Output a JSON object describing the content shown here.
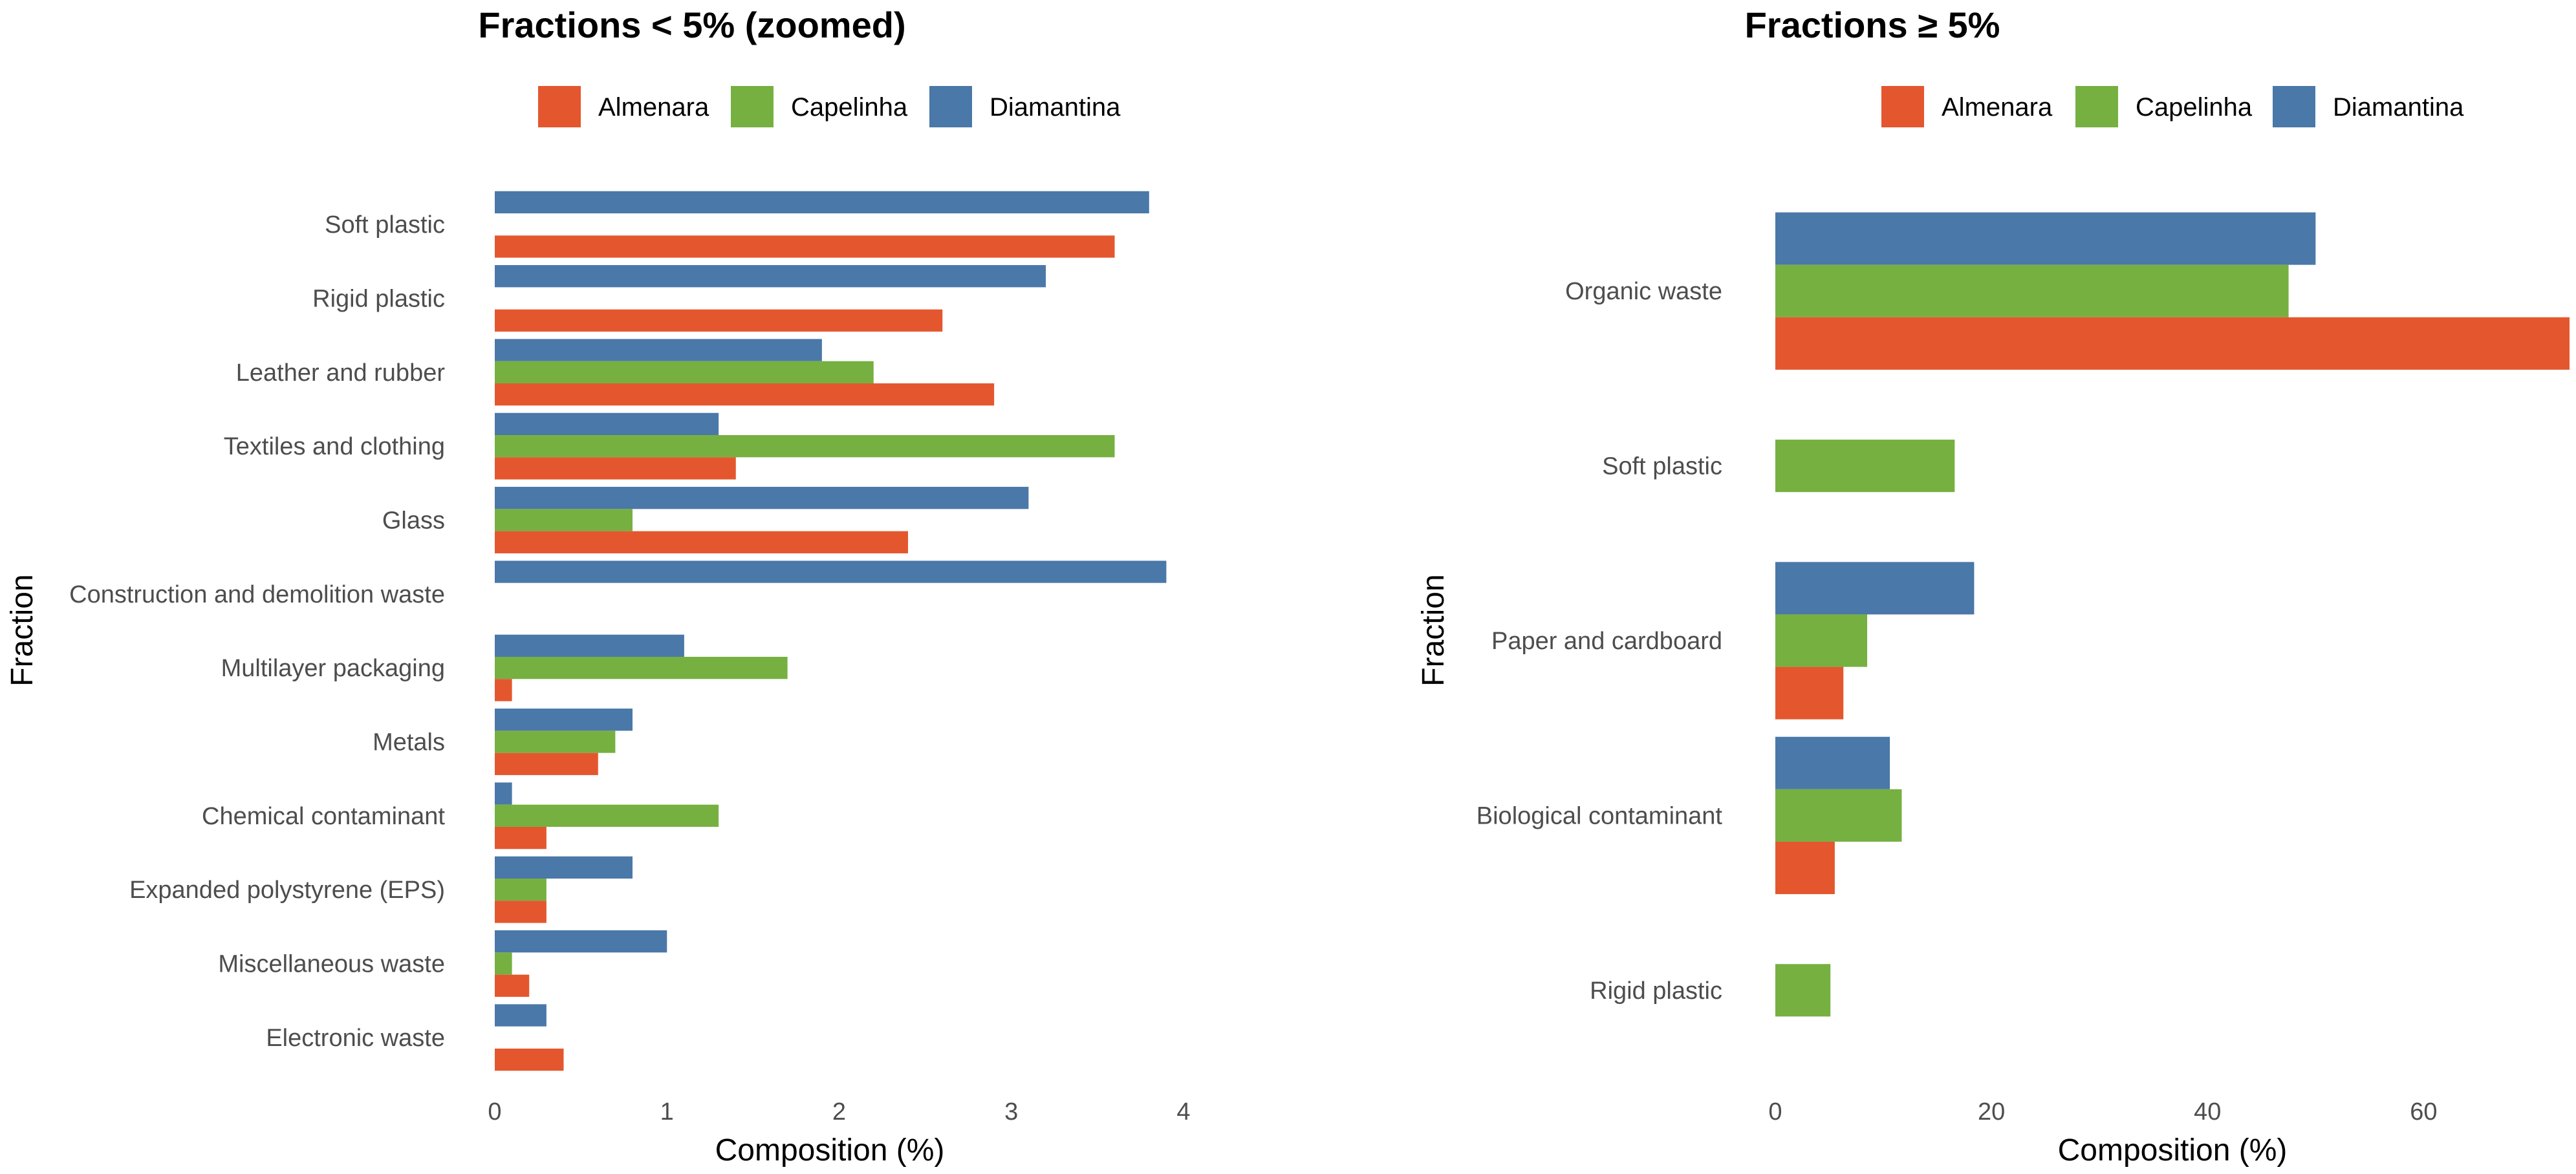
{
  "chart_data": [
    {
      "type": "bar",
      "orientation": "horizontal",
      "title": "Fractions < 5% (zoomed)",
      "xlabel": "Composition (%)",
      "ylabel": "Fraction",
      "xlim": [
        0,
        4
      ],
      "xticks": [
        "0",
        "1",
        "2",
        "3",
        "4"
      ],
      "legend_position": "top",
      "categories": [
        "Soft plastic",
        "Rigid plastic",
        "Leather and rubber",
        "Textiles and clothing",
        "Glass",
        "Construction and demolition waste",
        "Multilayer packaging",
        "Metals",
        "Chemical contaminant",
        "Expanded polystyrene (EPS)",
        "Miscellaneous waste",
        "Electronic waste"
      ],
      "series": [
        {
          "name": "Almenara",
          "color": "#E4572E",
          "values": [
            3.6,
            2.6,
            2.9,
            1.4,
            2.4,
            null,
            0.1,
            0.6,
            0.3,
            0.3,
            0.2,
            0.4
          ]
        },
        {
          "name": "Capelinha",
          "color": "#76B041",
          "values": [
            null,
            null,
            2.2,
            3.6,
            0.8,
            null,
            1.7,
            0.7,
            1.3,
            0.3,
            0.1,
            null
          ]
        },
        {
          "name": "Diamantina",
          "color": "#4A78A8",
          "values": [
            3.8,
            3.2,
            1.9,
            1.3,
            3.1,
            3.9,
            1.1,
            0.8,
            0.1,
            0.8,
            1.0,
            0.3
          ]
        }
      ]
    },
    {
      "type": "bar",
      "orientation": "horizontal",
      "title": "Fractions ≥ 5%",
      "xlabel": "Composition (%)",
      "ylabel": "Fraction",
      "xlim": [
        0,
        73.5
      ],
      "xticks": [
        "0",
        "20",
        "40",
        "60"
      ],
      "legend_position": "top",
      "categories": [
        "Organic waste",
        "Soft plastic",
        "Paper and cardboard",
        "Biological contaminant",
        "Rigid plastic"
      ],
      "series": [
        {
          "name": "Almenara",
          "color": "#E4572E",
          "values": [
            73.5,
            null,
            6.3,
            5.5,
            null
          ]
        },
        {
          "name": "Capelinha",
          "color": "#76B041",
          "values": [
            47.5,
            16.6,
            8.5,
            11.7,
            5.1
          ]
        },
        {
          "name": "Diamantina",
          "color": "#4A78A8",
          "values": [
            50.0,
            null,
            18.4,
            10.6,
            null
          ]
        }
      ]
    }
  ]
}
